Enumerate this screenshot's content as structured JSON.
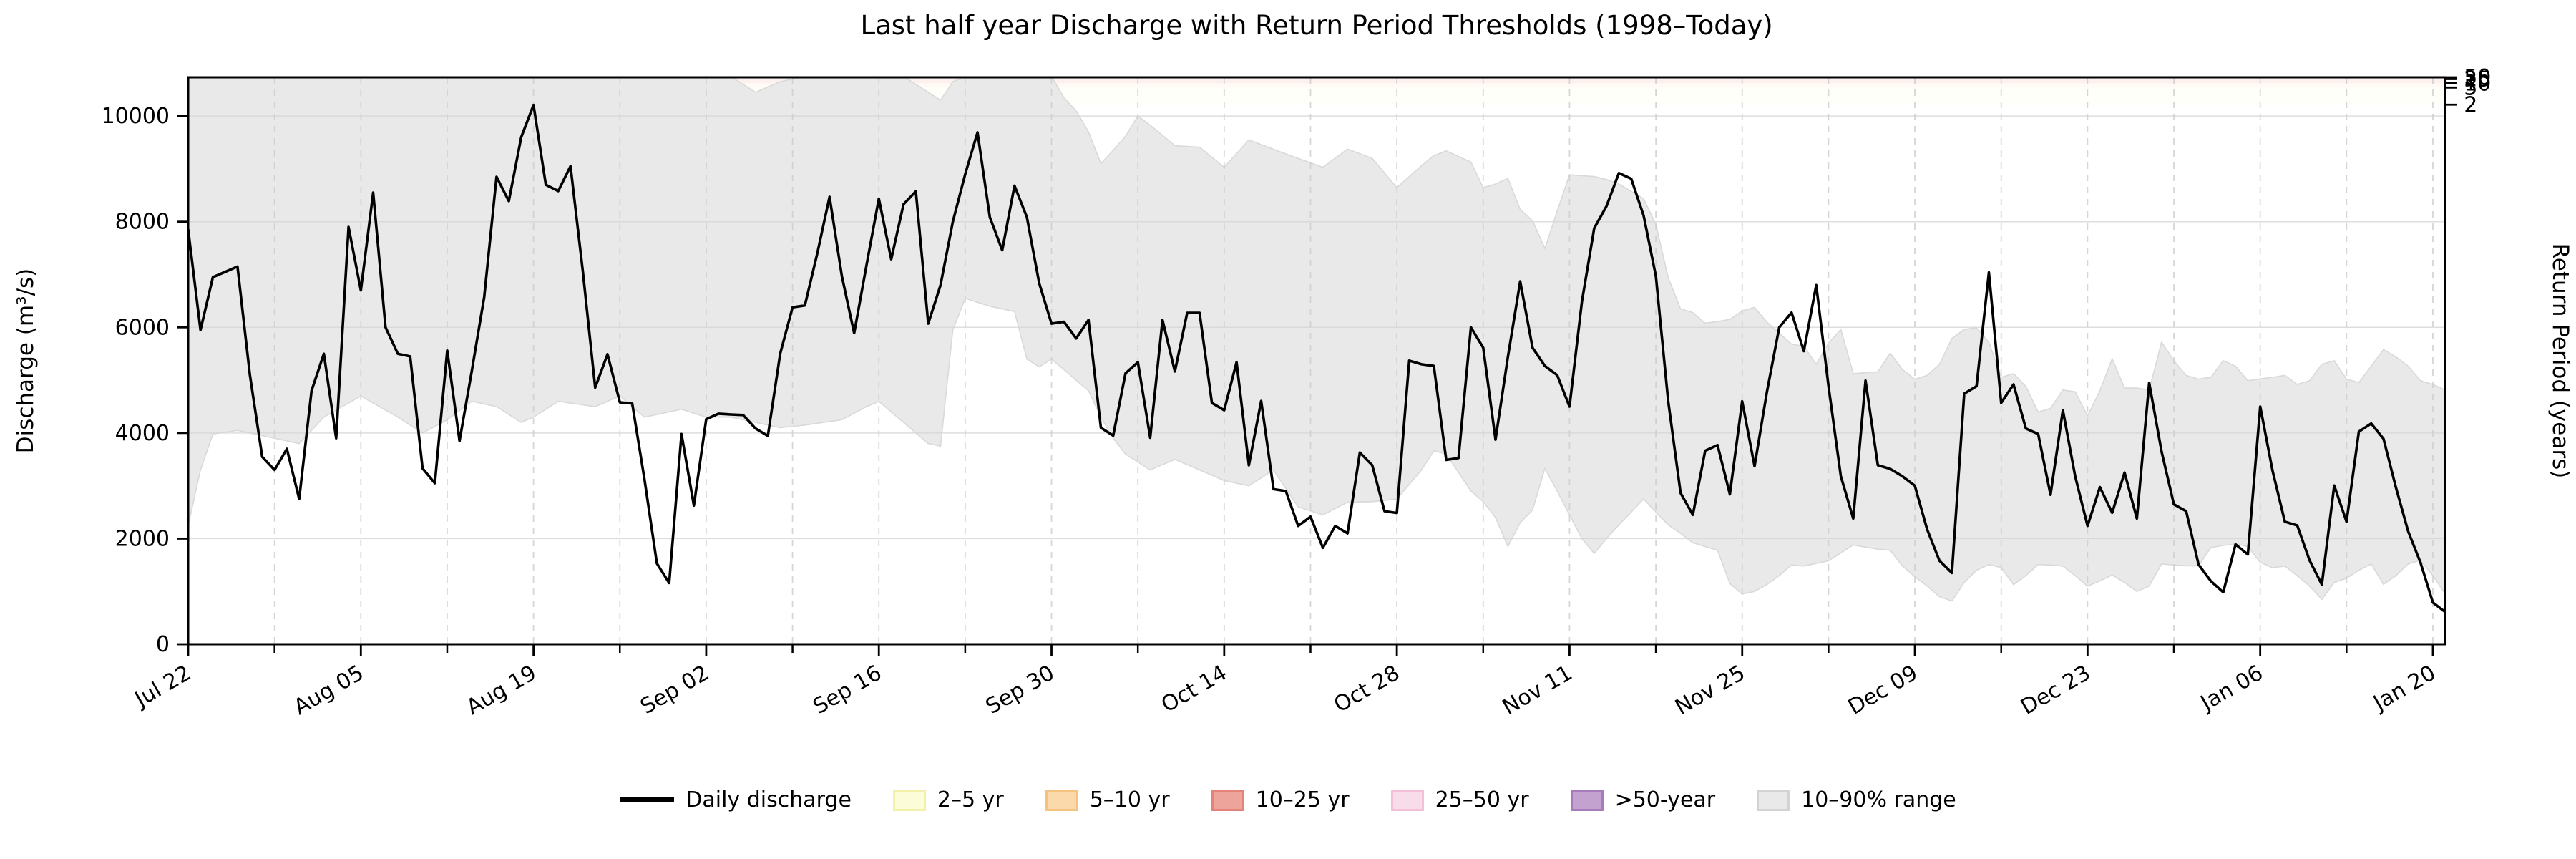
{
  "title": "Last half year Discharge with Return Period Thresholds (1998–Today)",
  "axes": {
    "y_left_label": "Discharge (m³/s)",
    "y_right_label": "Return Period (years)",
    "y_ticks": [
      0,
      2000,
      4000,
      6000,
      8000,
      10000
    ],
    "x_tick_labels": [
      "Jul 22",
      "Aug 05",
      "Aug 19",
      "Sep 02",
      "Sep 16",
      "Sep 30",
      "Oct 14",
      "Oct 28",
      "Nov 11",
      "Nov 25",
      "Dec 09",
      "Dec 23",
      "Jan 06",
      "Jan 20"
    ],
    "x_tick_days": [
      0,
      14,
      28,
      42,
      56,
      70,
      84,
      98,
      112,
      126,
      140,
      154,
      168,
      182
    ],
    "right_ticks": [
      {
        "label": "2",
        "value": 10215
      },
      {
        "label": "5",
        "value": 10540
      },
      {
        "label": "10",
        "value": 10620
      },
      {
        "label": "25",
        "value": 10700
      },
      {
        "label": "50",
        "value": 10745
      }
    ]
  },
  "legend": [
    {
      "label": "Daily discharge",
      "type": "line",
      "color": "#000000"
    },
    {
      "label": "2–5 yr",
      "type": "patch",
      "fill": "#fdfcd9",
      "edge": "#f5f0a8"
    },
    {
      "label": "5–10 yr",
      "type": "patch",
      "fill": "#fbd9ab",
      "edge": "#f6c280"
    },
    {
      "label": "10–25 yr",
      "type": "patch",
      "fill": "#eda49b",
      "edge": "#e5837a"
    },
    {
      "label": "25–50 yr",
      "type": "patch",
      "fill": "#f9dcea",
      "edge": "#f3c0d8"
    },
    {
      "label": ">50-year",
      "type": "patch",
      "fill": "#c4a2d0",
      "edge": "#a87bbd"
    },
    {
      "label": "10–90% range",
      "type": "patch",
      "fill": "#e9e9e9",
      "edge": "#d3d3d3"
    }
  ],
  "chart_data": {
    "type": "line",
    "title": "Last half year Discharge with Return Period Thresholds (1998–Today)",
    "xlabel": "",
    "ylabel": "Discharge (m³/s)",
    "ylabel_right": "Return Period (years)",
    "ylim": [
      0,
      10734
    ],
    "x_start_date": "Jul 22",
    "x_end_date": "Jan 21",
    "grid": true,
    "legend_position": "bottom-center",
    "series": [
      {
        "name": "Daily discharge",
        "color": "#000000",
        "note": "one value per day from Jul 22 (day 0) to Jan 21 (day 183), m3/s",
        "values": [
          7850,
          5950,
          6950,
          7050,
          7150,
          5100,
          3550,
          3300,
          3700,
          2750,
          4800,
          5500,
          3900,
          7900,
          6700,
          8550,
          6000,
          5500,
          5450,
          3330,
          3050,
          5560,
          3850,
          5180,
          6575,
          8850,
          8390,
          9600,
          10210,
          8700,
          8580,
          9050,
          7050,
          4860,
          5490,
          4580,
          4560,
          3120,
          1530,
          1160,
          3980,
          2625,
          4260,
          4365,
          4350,
          4340,
          4085,
          3945,
          5500,
          6380,
          6415,
          7390,
          8470,
          6970,
          5890,
          7180,
          8435,
          7290,
          8330,
          8575,
          6070,
          6800,
          8000,
          8900,
          9690,
          8085,
          7460,
          8680,
          8085,
          6835,
          6070,
          6105,
          5790,
          6140,
          4100,
          3950,
          5130,
          5340,
          3910,
          6140,
          5165,
          6275,
          6275,
          4570,
          4430,
          5340,
          3390,
          4605,
          2935,
          2900,
          2240,
          2415,
          1825,
          2240,
          2100,
          3630,
          3390,
          2520,
          2485,
          5370,
          5300,
          5270,
          3490,
          3525,
          6000,
          5615,
          3875,
          5440,
          6870,
          5615,
          5270,
          5095,
          4500,
          6485,
          7875,
          8295,
          8920,
          8815,
          8120,
          6970,
          4605,
          2865,
          2450,
          3665,
          3770,
          2840,
          4600,
          3370,
          4770,
          6000,
          6280,
          5550,
          6800,
          4885,
          3180,
          2380,
          4990,
          3390,
          3320,
          3180,
          3000,
          2170,
          1580,
          1350,
          4745,
          4885,
          7040,
          4570,
          4920,
          4085,
          3980,
          2830,
          4430,
          3180,
          2240,
          2975,
          2490,
          3250,
          2380,
          4950,
          3650,
          2650,
          2520,
          1510,
          1195,
          985,
          1890,
          1700,
          4500,
          3285,
          2320,
          2250,
          1590,
          1130,
          3005,
          2320,
          4025,
          4180,
          3890,
          2970,
          2135,
          1545,
          790,
          610
        ]
      }
    ],
    "band_10_90": {
      "name": "10–90% range",
      "fill": "#e9e9e9",
      "edge": "#d9d9d9",
      "note": "[day, lower, upper]; upper=11000 means clipped above axis top",
      "points": [
        [
          0,
          2250,
          11000
        ],
        [
          1,
          3300,
          11000
        ],
        [
          2,
          3980,
          11000
        ],
        [
          4,
          4050,
          11000
        ],
        [
          7,
          3900,
          11000
        ],
        [
          9,
          3800,
          11000
        ],
        [
          11,
          4300,
          11000
        ],
        [
          14,
          4700,
          11000
        ],
        [
          17,
          4300,
          11000
        ],
        [
          19,
          4000,
          11000
        ],
        [
          21,
          4250,
          11000
        ],
        [
          23,
          4600,
          11000
        ],
        [
          25,
          4500,
          11000
        ],
        [
          27,
          4200,
          11000
        ],
        [
          28,
          4300,
          11000
        ],
        [
          30,
          4600,
          11000
        ],
        [
          33,
          4500,
          11000
        ],
        [
          35,
          4700,
          11000
        ],
        [
          37,
          4300,
          11000
        ],
        [
          40,
          4450,
          11000
        ],
        [
          42,
          4300,
          11000
        ],
        [
          44,
          4300,
          10900
        ],
        [
          46,
          4200,
          10450
        ],
        [
          48,
          4100,
          10650
        ],
        [
          50,
          4150,
          11000
        ],
        [
          53,
          4250,
          11000
        ],
        [
          55,
          4500,
          11000
        ],
        [
          56,
          4600,
          11000
        ],
        [
          58,
          4200,
          11000
        ],
        [
          60,
          3800,
          10450
        ],
        [
          61,
          3750,
          10300
        ],
        [
          62,
          5950,
          10650
        ],
        [
          63,
          6550,
          11000
        ],
        [
          65,
          6400,
          11000
        ],
        [
          67,
          6300,
          11000
        ],
        [
          68,
          5400,
          11000
        ],
        [
          69,
          5250,
          11000
        ],
        [
          70,
          5400,
          10800
        ],
        [
          71,
          5200,
          10350
        ],
        [
          72,
          5000,
          10100
        ],
        [
          73,
          4800,
          9700
        ],
        [
          74,
          4300,
          9100
        ],
        [
          75,
          3900,
          9350
        ],
        [
          76,
          3600,
          9620
        ],
        [
          77,
          3450,
          10000
        ],
        [
          78,
          3300,
          9830
        ],
        [
          80,
          3500,
          9440
        ],
        [
          82,
          3300,
          9410
        ],
        [
          84,
          3100,
          9030
        ],
        [
          86,
          3000,
          9550
        ],
        [
          88,
          3300,
          9370
        ],
        [
          90,
          2600,
          9200
        ],
        [
          92,
          2450,
          9030
        ],
        [
          94,
          2690,
          9375
        ],
        [
          96,
          2700,
          9200
        ],
        [
          98,
          2750,
          8645
        ],
        [
          100,
          3300,
          9060
        ],
        [
          101,
          3665,
          9250
        ],
        [
          102,
          3600,
          9340
        ],
        [
          104,
          2900,
          9130
        ],
        [
          105,
          2700,
          8645
        ],
        [
          106,
          2400,
          8715
        ],
        [
          107,
          1850,
          8820
        ],
        [
          108,
          2300,
          8230
        ],
        [
          109,
          2540,
          8020
        ],
        [
          110,
          3330,
          7495
        ],
        [
          111,
          2900,
          8200
        ],
        [
          112,
          2450,
          8890
        ],
        [
          113,
          2000,
          8870
        ],
        [
          114,
          1720,
          8855
        ],
        [
          115,
          2000,
          8800
        ],
        [
          116,
          2260,
          8715
        ],
        [
          117,
          2500,
          8575
        ],
        [
          118,
          2750,
          8435
        ],
        [
          119,
          2500,
          7950
        ],
        [
          120,
          2260,
          6940
        ],
        [
          121,
          2100,
          6350
        ],
        [
          122,
          1920,
          6280
        ],
        [
          123,
          1850,
          6080
        ],
        [
          124,
          1780,
          6110
        ],
        [
          125,
          1150,
          6150
        ],
        [
          126,
          950,
          6310
        ],
        [
          127,
          1000,
          6380
        ],
        [
          128,
          1130,
          6100
        ],
        [
          129,
          1300,
          5890
        ],
        [
          130,
          1500,
          5680
        ],
        [
          131,
          1480,
          5645
        ],
        [
          132,
          1530,
          5300
        ],
        [
          133,
          1580,
          5700
        ],
        [
          134,
          1730,
          5960
        ],
        [
          135,
          1880,
          5125
        ],
        [
          137,
          1800,
          5160
        ],
        [
          138,
          1780,
          5510
        ],
        [
          139,
          1480,
          5200
        ],
        [
          140,
          1280,
          5020
        ],
        [
          141,
          1100,
          5090
        ],
        [
          142,
          900,
          5300
        ],
        [
          143,
          820,
          5790
        ],
        [
          144,
          1170,
          5960
        ],
        [
          145,
          1400,
          5995
        ],
        [
          146,
          1510,
          5715
        ],
        [
          147,
          1450,
          5055
        ],
        [
          148,
          1130,
          5125
        ],
        [
          149,
          1300,
          4880
        ],
        [
          150,
          1510,
          4395
        ],
        [
          151,
          1500,
          4465
        ],
        [
          152,
          1480,
          4815
        ],
        [
          153,
          1300,
          4780
        ],
        [
          154,
          1100,
          4325
        ],
        [
          155,
          1200,
          4800
        ],
        [
          156,
          1310,
          5405
        ],
        [
          157,
          1170,
          4850
        ],
        [
          158,
          1000,
          4850
        ],
        [
          159,
          1100,
          4815
        ],
        [
          160,
          1520,
          5720
        ],
        [
          161,
          1500,
          5370
        ],
        [
          162,
          1485,
          5090
        ],
        [
          163,
          1485,
          5020
        ],
        [
          164,
          1830,
          5055
        ],
        [
          165,
          1870,
          5370
        ],
        [
          166,
          1900,
          5265
        ],
        [
          167,
          1850,
          4990
        ],
        [
          168,
          1550,
          5025
        ],
        [
          169,
          1450,
          5055
        ],
        [
          170,
          1480,
          5090
        ],
        [
          171,
          1300,
          4920
        ],
        [
          172,
          1100,
          4990
        ],
        [
          173,
          850,
          5300
        ],
        [
          174,
          1170,
          5370
        ],
        [
          175,
          1250,
          5020
        ],
        [
          176,
          1400,
          4955
        ],
        [
          177,
          1520,
          5265
        ],
        [
          178,
          1135,
          5580
        ],
        [
          179,
          1300,
          5440
        ],
        [
          180,
          1520,
          5265
        ],
        [
          181,
          1590,
          4990
        ],
        [
          182,
          1300,
          4920
        ],
        [
          183,
          950,
          4815
        ]
      ]
    },
    "return_period_thresholds": [
      {
        "label": "2–5 yr",
        "from": 10215,
        "to": 10540,
        "fill": "#fdfcd9",
        "edge": "#f5f0a8"
      },
      {
        "label": "5–10 yr",
        "from": 10540,
        "to": 10620,
        "fill": "#fbd9ab",
        "edge": "#f6c280"
      },
      {
        "label": "10–25 yr",
        "from": 10620,
        "to": 10700,
        "fill": "#eda49b",
        "edge": "#e5837a"
      },
      {
        "label": "25–50 yr",
        "from": 10700,
        "to": 10745,
        "fill": "#f9dcea",
        "edge": "#f3c0d8"
      },
      {
        "label": ">50-year",
        "from": 10745,
        "to": 11200,
        "fill": "#c4a2d0",
        "edge": "#a87bbd"
      }
    ]
  },
  "colors": {
    "line": "#000000",
    "band_fill": "#e9e9e9",
    "band_edge": "#d9d9d9",
    "grid_h": "#d6d6d6",
    "grid_v": "#cfcfcf",
    "spine": "#000000",
    "text": "#000000"
  }
}
